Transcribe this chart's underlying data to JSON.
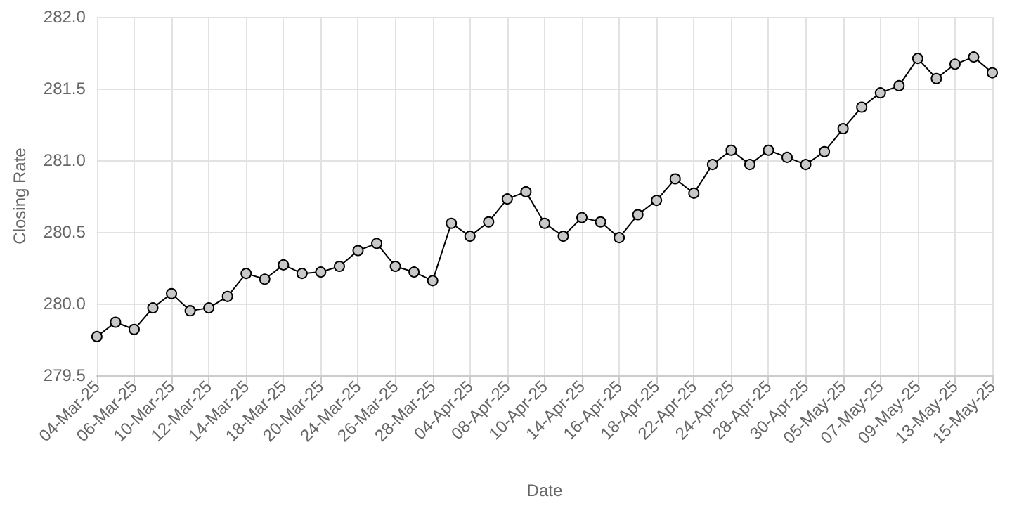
{
  "chart_data": {
    "type": "line",
    "xlabel": "Date",
    "ylabel": "Closing Rate",
    "categories": [
      "04-Mar-25",
      null,
      "06-Mar-25",
      null,
      "10-Mar-25",
      null,
      "12-Mar-25",
      null,
      "14-Mar-25",
      null,
      "18-Mar-25",
      null,
      "20-Mar-25",
      null,
      "24-Mar-25",
      null,
      "26-Mar-25",
      null,
      "28-Mar-25",
      null,
      "04-Apr-25",
      null,
      "08-Apr-25",
      null,
      "10-Apr-25",
      null,
      "14-Apr-25",
      null,
      "16-Apr-25",
      null,
      "18-Apr-25",
      null,
      "22-Apr-25",
      null,
      "24-Apr-25",
      null,
      "28-Apr-25",
      null,
      "30-Apr-25",
      null,
      "05-May-25",
      null,
      "07-May-25",
      null,
      "09-May-25",
      null,
      "13-May-25",
      null,
      "15-May-25"
    ],
    "series": [
      {
        "color": "#000000",
        "values": [
          279.77,
          279.87,
          279.82,
          279.97,
          280.07,
          279.95,
          279.97,
          280.05,
          280.21,
          280.17,
          280.27,
          280.21,
          280.22,
          280.26,
          280.37,
          280.42,
          280.26,
          280.22,
          280.16,
          280.56,
          280.47,
          280.57,
          280.73,
          280.78,
          280.56,
          280.47,
          280.6,
          280.57,
          280.46,
          280.62,
          280.72,
          280.87,
          280.77,
          280.97,
          281.07,
          280.97,
          281.07,
          281.02,
          280.97,
          281.06,
          281.22,
          281.37,
          281.47,
          281.52,
          281.71,
          281.57,
          281.67,
          281.72,
          281.61
        ]
      }
    ],
    "ylim": [
      279.5,
      282.0
    ],
    "yticks": [
      {
        "value": 279.5,
        "label": "279.5"
      },
      {
        "value": 280,
        "label": "280.0"
      },
      {
        "value": 280.5,
        "label": "280.5"
      },
      {
        "value": 281,
        "label": "281.0"
      },
      {
        "value": 281.5,
        "label": "281.5"
      },
      {
        "value": 282,
        "label": "282.0"
      }
    ],
    "grid": true,
    "marker": "circle",
    "line_style": "solid"
  }
}
